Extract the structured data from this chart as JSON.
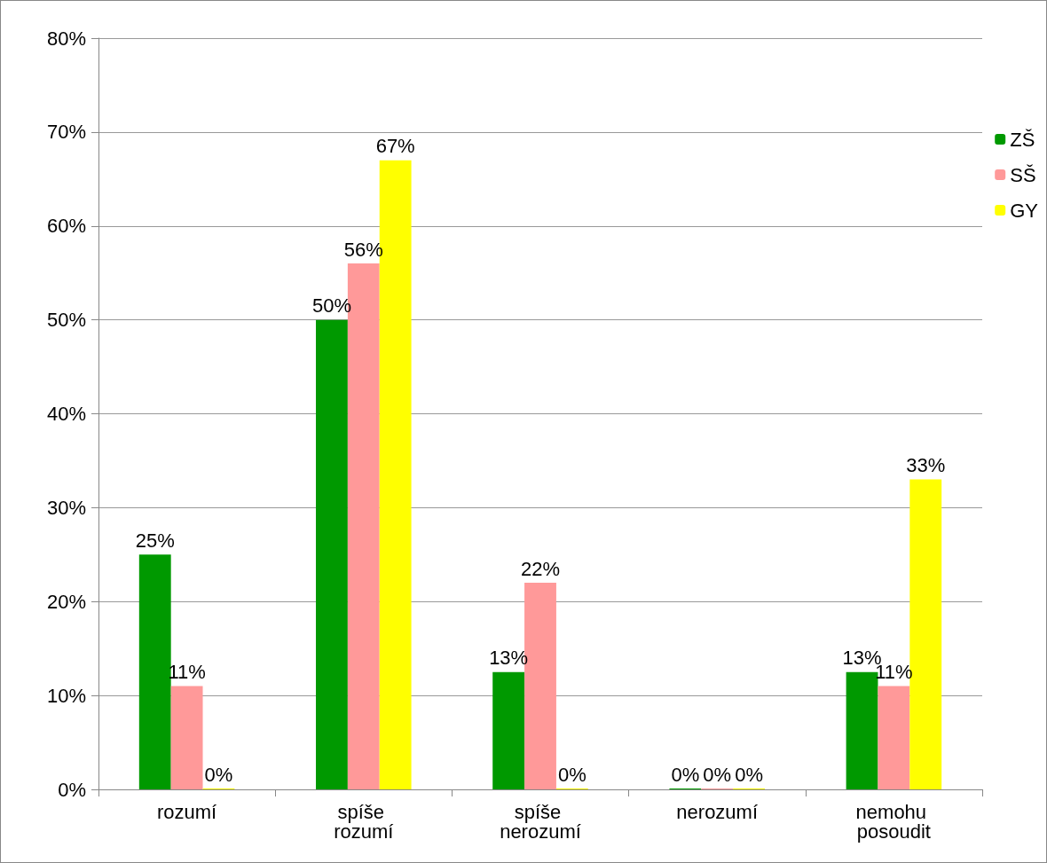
{
  "chart_data": {
    "type": "bar",
    "categories": [
      "rozumí",
      "spíše rozumí",
      "spíše nerozumí",
      "nerozumí",
      "nemohu posoudit"
    ],
    "series": [
      {
        "name": "ZŠ",
        "color": "#009900",
        "values": [
          25,
          50,
          12.5,
          0,
          12.5
        ],
        "value_labels": [
          "25%",
          "50%",
          "13%",
          "0%",
          "13%"
        ]
      },
      {
        "name": "SŠ",
        "color": "#ff9999",
        "values": [
          11,
          56,
          22,
          0,
          11
        ],
        "value_labels": [
          "11%",
          "56%",
          "22%",
          "0%",
          "11%"
        ]
      },
      {
        "name": "GY",
        "color": "#ffff00",
        "values": [
          0,
          67,
          0,
          0,
          33
        ],
        "value_labels": [
          "0%",
          "67%",
          "0%",
          "0%",
          "33%"
        ]
      }
    ],
    "ylim": [
      0,
      80
    ],
    "yticks": [
      {
        "value": 0,
        "label": "0%"
      },
      {
        "value": 10,
        "label": "10%"
      },
      {
        "value": 20,
        "label": "20%"
      },
      {
        "value": 30,
        "label": "30%"
      },
      {
        "value": 40,
        "label": "40%"
      },
      {
        "value": 50,
        "label": "50%"
      },
      {
        "value": 60,
        "label": "60%"
      },
      {
        "value": 70,
        "label": "70%"
      },
      {
        "value": 80,
        "label": "80%"
      }
    ],
    "grid": "y",
    "legend": "right"
  }
}
